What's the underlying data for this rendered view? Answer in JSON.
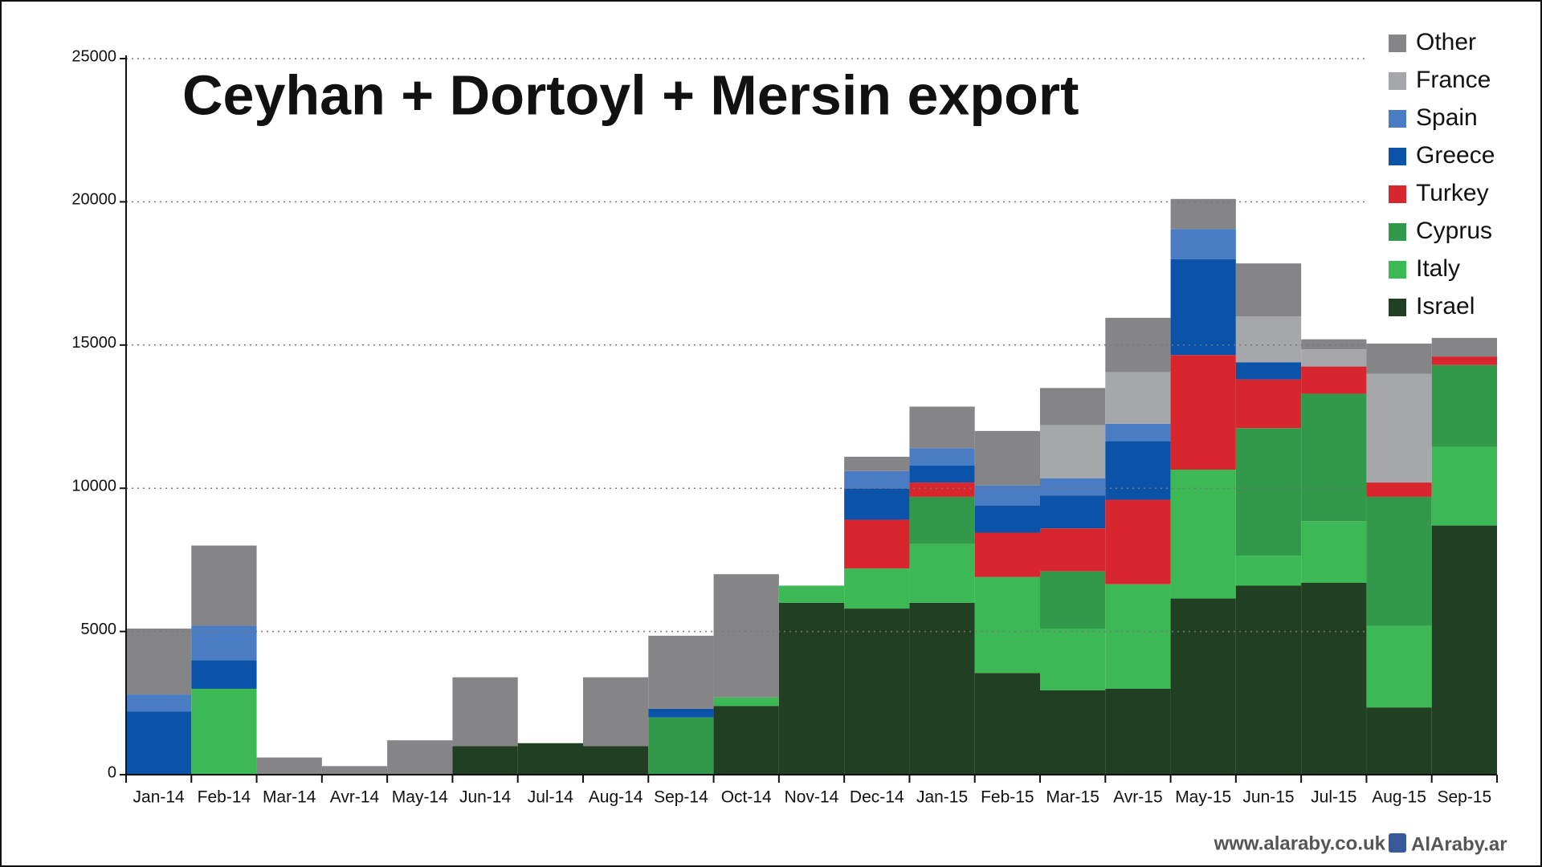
{
  "chart_data": {
    "type": "stacked-bar",
    "title": "Ceyhan + Dortoyl + Mersin export",
    "footer": "www.alaraby.co.uk",
    "footer_social": "AlAraby.ar",
    "categories": [
      "Jan-14",
      "Feb-14",
      "Mar-14",
      "Avr-14",
      "May-14",
      "Jun-14",
      "Jul-14",
      "Aug-14",
      "Sep-14",
      "Oct-14",
      "Nov-14",
      "Dec-14",
      "Jan-15",
      "Feb-15",
      "Mar-15",
      "Avr-15",
      "May-15",
      "Jun-15",
      "Jul-15",
      "Aug-15",
      "Sep-15"
    ],
    "series": [
      {
        "name": "Israel",
        "color": "#213f22",
        "values": [
          0,
          0,
          0,
          0,
          0,
          1000,
          1100,
          1000,
          0,
          2400,
          6000,
          5800,
          6000,
          3550,
          2950,
          3000,
          6150,
          6600,
          6700,
          2350,
          8700
        ]
      },
      {
        "name": "Italy",
        "color": "#3cb954",
        "values": [
          0,
          3000,
          0,
          0,
          0,
          0,
          0,
          0,
          0,
          300,
          600,
          1400,
          2050,
          3350,
          2150,
          3650,
          4500,
          1050,
          2150,
          2850,
          2750
        ]
      },
      {
        "name": "Cyprus",
        "color": "#33994a",
        "values": [
          0,
          0,
          0,
          0,
          0,
          0,
          0,
          0,
          2000,
          0,
          0,
          0,
          1650,
          0,
          2000,
          0,
          0,
          4450,
          4450,
          4500,
          2850
        ]
      },
      {
        "name": "Turkey",
        "color": "#d7262e",
        "values": [
          0,
          0,
          0,
          0,
          0,
          0,
          0,
          0,
          0,
          0,
          0,
          1700,
          500,
          1550,
          1500,
          2950,
          4000,
          1700,
          950,
          500,
          300
        ]
      },
      {
        "name": "Greece",
        "color": "#0a53a8",
        "values": [
          2200,
          1000,
          0,
          0,
          0,
          0,
          0,
          0,
          300,
          0,
          0,
          1100,
          600,
          950,
          1150,
          2050,
          3350,
          600,
          0,
          0,
          0
        ]
      },
      {
        "name": "Spain",
        "color": "#4a7cc4",
        "values": [
          600,
          1200,
          0,
          0,
          0,
          0,
          0,
          0,
          0,
          0,
          0,
          600,
          600,
          700,
          600,
          600,
          1050,
          0,
          0,
          0,
          0
        ]
      },
      {
        "name": "France",
        "color": "#a6a7aa",
        "values": [
          0,
          0,
          0,
          0,
          0,
          0,
          0,
          0,
          0,
          0,
          0,
          0,
          0,
          0,
          1850,
          1800,
          0,
          1600,
          600,
          3800,
          0
        ]
      },
      {
        "name": "Other",
        "color": "#858588",
        "values": [
          2300,
          2800,
          600,
          300,
          1200,
          2400,
          0,
          2400,
          2550,
          4300,
          0,
          500,
          1450,
          1900,
          1300,
          1900,
          1050,
          1850,
          350,
          1050,
          650
        ]
      }
    ],
    "ylim": [
      0,
      25000
    ],
    "yticks": [
      0,
      5000,
      10000,
      15000,
      20000,
      25000
    ],
    "grid": true,
    "legend": "top-right"
  }
}
